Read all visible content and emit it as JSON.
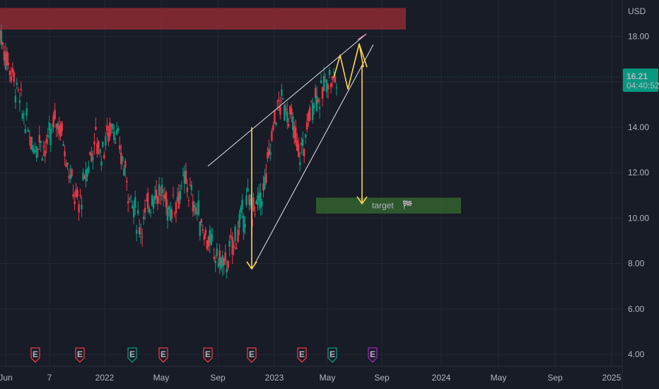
{
  "chart_data": {
    "type": "candlestick",
    "currency": "USD",
    "y_axis": {
      "ticks": [
        "18.00",
        "16.00",
        "14.00",
        "12.00",
        "10.00",
        "8.00",
        "6.00",
        "4.00"
      ],
      "range": [
        3.1,
        19.6
      ]
    },
    "x_axis": {
      "ticks": [
        "Jun",
        "7",
        "2022",
        "May",
        "Sep",
        "2023",
        "May",
        "Sep",
        "2024",
        "May",
        "Sep",
        "2025"
      ]
    },
    "last_price": {
      "value": "16.21",
      "countdown": "04:40:52",
      "price": 16.21,
      "color": "#089981"
    },
    "annotations": {
      "target_label": "target",
      "target_flag": "🏁",
      "target_zone": [
        10.2,
        10.9
      ],
      "resistance_zone": [
        18.3,
        19.25
      ],
      "colors": {
        "up_candle": "#089981",
        "down_candle": "#f23645",
        "projection": "#ffd54f",
        "resistance_zone": "#8e2a35",
        "target_zone": "#2f5b2e",
        "earnings_red": "#f23645",
        "earnings_green": "#089981",
        "earnings_purple": "#9c27b0"
      }
    },
    "events": [
      {
        "label": "E",
        "kind": "red"
      },
      {
        "label": "E",
        "kind": "red"
      },
      {
        "label": "E",
        "kind": "green"
      },
      {
        "label": "E",
        "kind": "red"
      },
      {
        "label": "E",
        "kind": "red"
      },
      {
        "label": "E",
        "kind": "red"
      },
      {
        "label": "E",
        "kind": "red"
      },
      {
        "label": "E",
        "kind": "green"
      },
      {
        "label": "E",
        "kind": "purple"
      }
    ],
    "series_approx": [
      18.2,
      17.2,
      16.5,
      15.6,
      14.7,
      13.9,
      13.2,
      13.5,
      13.0,
      13.6,
      14.4,
      13.8,
      12.5,
      11.2,
      10.5,
      11.6,
      12.7,
      13.5,
      12.9,
      13.6,
      14.3,
      13.2,
      12.3,
      11.1,
      10.2,
      9.6,
      10.3,
      11.0,
      11.2,
      10.9,
      10.4,
      10.7,
      11.2,
      11.6,
      10.9,
      10.3,
      9.6,
      9.0,
      8.5,
      8.1,
      7.9,
      8.6,
      9.3,
      10.0,
      10.7,
      10.3,
      10.7,
      11.4,
      13.2,
      14.7,
      15.1,
      14.8,
      14.0,
      12.8,
      13.2,
      14.7,
      15.5,
      15.3,
      16.2,
      16.1,
      16.21
    ]
  }
}
